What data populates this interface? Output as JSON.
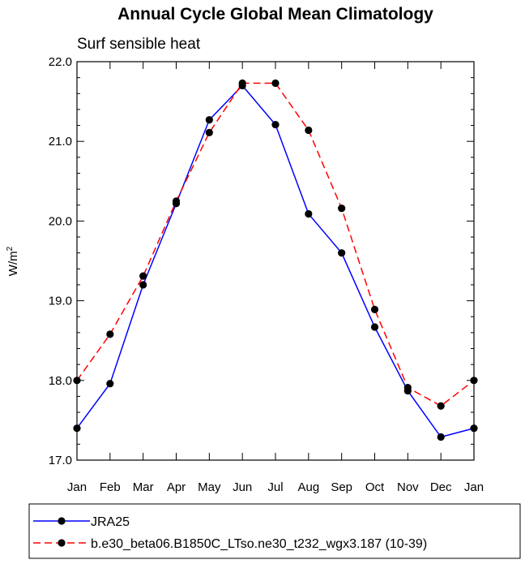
{
  "chart_data": {
    "type": "line",
    "title": "Annual Cycle Global Mean Climatology",
    "subtitle": "Surf sensible heat",
    "xlabel": "",
    "ylabel": "W/m",
    "ylabel_superscript": "2",
    "categories": [
      "Jan",
      "Feb",
      "Mar",
      "Apr",
      "May",
      "Jun",
      "Jul",
      "Aug",
      "Sep",
      "Oct",
      "Nov",
      "Dec",
      "Jan"
    ],
    "ylim": [
      17.0,
      22.0
    ],
    "yticks": [
      17.0,
      18.0,
      19.0,
      20.0,
      21.0,
      22.0
    ],
    "ytick_labels": [
      "17.0",
      "18.0",
      "19.0",
      "20.0",
      "21.0",
      "22.0"
    ],
    "series": [
      {
        "name": "JRA25",
        "color": "#0000ff",
        "dash": "solid",
        "values": [
          17.4,
          17.96,
          19.2,
          20.22,
          21.27,
          21.7,
          21.21,
          20.09,
          19.6,
          18.67,
          17.87,
          17.29,
          17.4
        ]
      },
      {
        "name": "b.e30_beta06.B1850C_LTso.ne30_t232_wgx3.187 (10-39)",
        "color": "#ff0000",
        "dash": "dashed",
        "values": [
          18.0,
          18.58,
          19.31,
          20.25,
          21.11,
          21.73,
          21.73,
          21.14,
          20.16,
          18.89,
          17.91,
          17.68,
          18.0
        ]
      }
    ],
    "legend_position": "bottom",
    "grid": false
  }
}
